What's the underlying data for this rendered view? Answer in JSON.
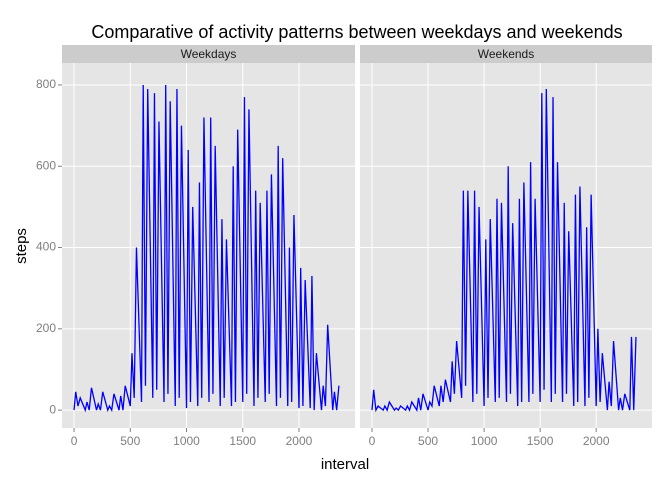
{
  "chart_data": {
    "type": "line",
    "title": "Comparative of activity patterns between weekdays and weekends",
    "xlabel": "interval",
    "ylabel": "steps",
    "color": "#0000ff",
    "grid": true,
    "xlim": [
      -107,
      2498
    ],
    "ylim": [
      -44,
      854
    ],
    "xticks": [
      0,
      500,
      1000,
      1500,
      2000
    ],
    "yticks": [
      0,
      200,
      400,
      600,
      800
    ],
    "x": [
      0,
      15,
      35,
      55,
      100,
      115,
      135,
      155,
      200,
      215,
      235,
      255,
      300,
      315,
      335,
      355,
      400,
      415,
      435,
      455,
      500,
      515,
      535,
      555,
      600,
      615,
      635,
      655,
      700,
      715,
      735,
      755,
      800,
      815,
      835,
      855,
      900,
      915,
      935,
      955,
      1000,
      1015,
      1035,
      1055,
      1100,
      1115,
      1135,
      1155,
      1200,
      1215,
      1235,
      1255,
      1300,
      1315,
      1335,
      1355,
      1400,
      1415,
      1435,
      1455,
      1500,
      1515,
      1535,
      1555,
      1600,
      1615,
      1635,
      1655,
      1700,
      1715,
      1735,
      1755,
      1800,
      1815,
      1835,
      1855,
      1900,
      1915,
      1935,
      1955,
      2000,
      2015,
      2035,
      2055,
      2100,
      2115,
      2135,
      2155,
      2200,
      2215,
      2235,
      2255,
      2300,
      2315,
      2335,
      2355
    ],
    "series": [
      {
        "name": "Weekdays",
        "values": [
          0,
          45,
          10,
          30,
          0,
          20,
          0,
          55,
          0,
          15,
          0,
          45,
          0,
          10,
          0,
          40,
          0,
          35,
          0,
          60,
          10,
          140,
          30,
          400,
          20,
          800,
          60,
          790,
          30,
          780,
          50,
          710,
          20,
          800,
          40,
          760,
          10,
          790,
          30,
          700,
          5,
          640,
          20,
          500,
          10,
          560,
          30,
          720,
          20,
          720,
          40,
          650,
          10,
          470,
          30,
          420,
          10,
          600,
          20,
          690,
          20,
          770,
          40,
          740,
          10,
          540,
          30,
          510,
          20,
          540,
          40,
          580,
          10,
          650,
          30,
          620,
          10,
          400,
          20,
          480,
          5,
          350,
          10,
          320,
          5,
          330,
          0,
          140,
          0,
          60,
          10,
          210,
          0,
          45,
          0,
          60
        ]
      },
      {
        "name": "Weekends",
        "values": [
          0,
          50,
          0,
          10,
          0,
          10,
          0,
          20,
          0,
          5,
          0,
          10,
          0,
          10,
          0,
          20,
          0,
          30,
          0,
          40,
          0,
          20,
          10,
          60,
          10,
          60,
          20,
          75,
          20,
          120,
          40,
          170,
          30,
          540,
          60,
          540,
          20,
          540,
          40,
          500,
          10,
          420,
          30,
          470,
          20,
          520,
          30,
          510,
          20,
          600,
          40,
          460,
          10,
          520,
          20,
          560,
          20,
          610,
          40,
          520,
          20,
          780,
          50,
          790,
          20,
          770,
          40,
          610,
          20,
          510,
          40,
          440,
          10,
          530,
          20,
          550,
          10,
          450,
          30,
          530,
          10,
          200,
          20,
          140,
          0,
          70,
          10,
          170,
          0,
          30,
          0,
          40,
          0,
          180,
          0,
          180
        ]
      }
    ]
  }
}
